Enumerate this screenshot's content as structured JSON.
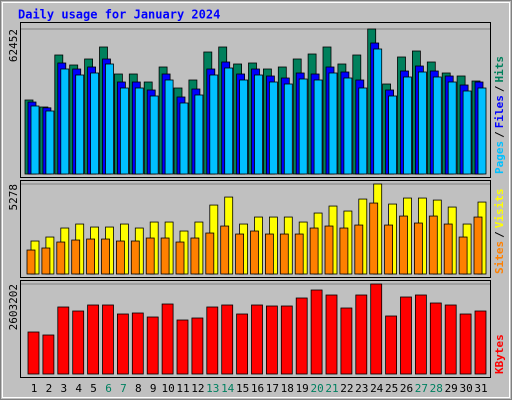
{
  "title": "Daily usage for January 2024",
  "legend_separator": "/",
  "chart_data": [
    {
      "type": "bar",
      "ylim": [
        0,
        62452
      ],
      "yticks": [
        62452
      ],
      "series": [
        {
          "name": "Hits",
          "color": "#00805c",
          "values": [
            31872,
            28857,
            51253,
            46946,
            49531,
            54699,
            43070,
            43070,
            39624,
            46085,
            37040,
            40486,
            52545,
            54699,
            47377,
            47808,
            45224,
            46085,
            49531,
            51684,
            54699,
            47377,
            51253,
            62452,
            38763,
            50392,
            52976,
            48238,
            43501,
            42209,
            40055
          ]
        },
        {
          "name": "Files",
          "color": "#0000ff",
          "values": [
            31000,
            28500,
            47808,
            45223,
            46085,
            49531,
            39624,
            39624,
            36179,
            43070,
            33164,
            36609,
            45223,
            48238,
            43070,
            45223,
            42208,
            41347,
            43501,
            43070,
            46085,
            43931,
            40486,
            56422,
            36179,
            44362,
            46515,
            44362,
            42208,
            38332,
            39624
          ]
        },
        {
          "name": "Pages",
          "color": "#00c0ff",
          "values": [
            29288,
            27134,
            45224,
            42639,
            43501,
            47377,
            37040,
            37040,
            33595,
            40486,
            30580,
            34025,
            42639,
            45654,
            40486,
            42639,
            39624,
            38763,
            40917,
            40486,
            43501,
            41347,
            37040,
            53838,
            33595,
            41778,
            43931,
            41778,
            39624,
            35748,
            37040
          ]
        }
      ]
    },
    {
      "type": "bar",
      "ylim": [
        0,
        5278
      ],
      "yticks": [
        5278
      ],
      "series": [
        {
          "name": "Visits",
          "color": "#ffff00",
          "values": [
            1934,
            2168,
            2696,
            2930,
            2754,
            2754,
            2930,
            2696,
            3047,
            3047,
            2520,
            3047,
            4043,
            4512,
            2930,
            3340,
            3340,
            3340,
            3047,
            3575,
            3985,
            3692,
            4395,
            5278,
            4102,
            4454,
            4454,
            4336,
            3926,
            2930,
            4219
          ]
        },
        {
          "name": "Sites",
          "color": "#ff8000",
          "values": [
            1406,
            1524,
            1875,
            1992,
            2051,
            2051,
            1934,
            1934,
            2110,
            2110,
            1875,
            2110,
            2403,
            2813,
            2344,
            2520,
            2344,
            2344,
            2344,
            2696,
            2813,
            2696,
            2871,
            4161,
            2871,
            3399,
            2989,
            3399,
            2930,
            2168,
            3340
          ]
        }
      ]
    },
    {
      "type": "bar",
      "ylim": [
        0,
        2603202
      ],
      "yticks": [
        2603202
      ],
      "categories": [
        "1",
        "2",
        "3",
        "4",
        "5",
        "6",
        "7",
        "8",
        "9",
        "10",
        "11",
        "12",
        "13",
        "14",
        "15",
        "16",
        "17",
        "18",
        "19",
        "20",
        "21",
        "22",
        "23",
        "24",
        "25",
        "26",
        "27",
        "28",
        "29",
        "30",
        "31"
      ],
      "category_colors": [
        "#000000",
        "#000000",
        "#000000",
        "#000000",
        "#000000",
        "#008060",
        "#008060",
        "#000000",
        "#000000",
        "#000000",
        "#000000",
        "#000000",
        "#008060",
        "#008060",
        "#000000",
        "#000000",
        "#000000",
        "#000000",
        "#000000",
        "#008060",
        "#008060",
        "#000000",
        "#000000",
        "#000000",
        "#000000",
        "#000000",
        "#008060",
        "#008060",
        "#000000",
        "#000000",
        "#000000"
      ],
      "series": [
        {
          "name": "KBytes",
          "color": "#ff0000",
          "values": [
            1214808,
            1128036,
            1937908,
            1822212,
            1995756,
            1995756,
            1735440,
            1764364,
            1648668,
            2024680,
            1561896,
            1619744,
            1937908,
            1995756,
            1735440,
            1995756,
            1966832,
            1966832,
            2198224,
            2429616,
            2284996,
            1908984,
            2284996,
            2603202,
            1677592,
            2227148,
            2284996,
            2053604,
            1995756,
            1735440,
            1822212
          ]
        }
      ]
    }
  ]
}
